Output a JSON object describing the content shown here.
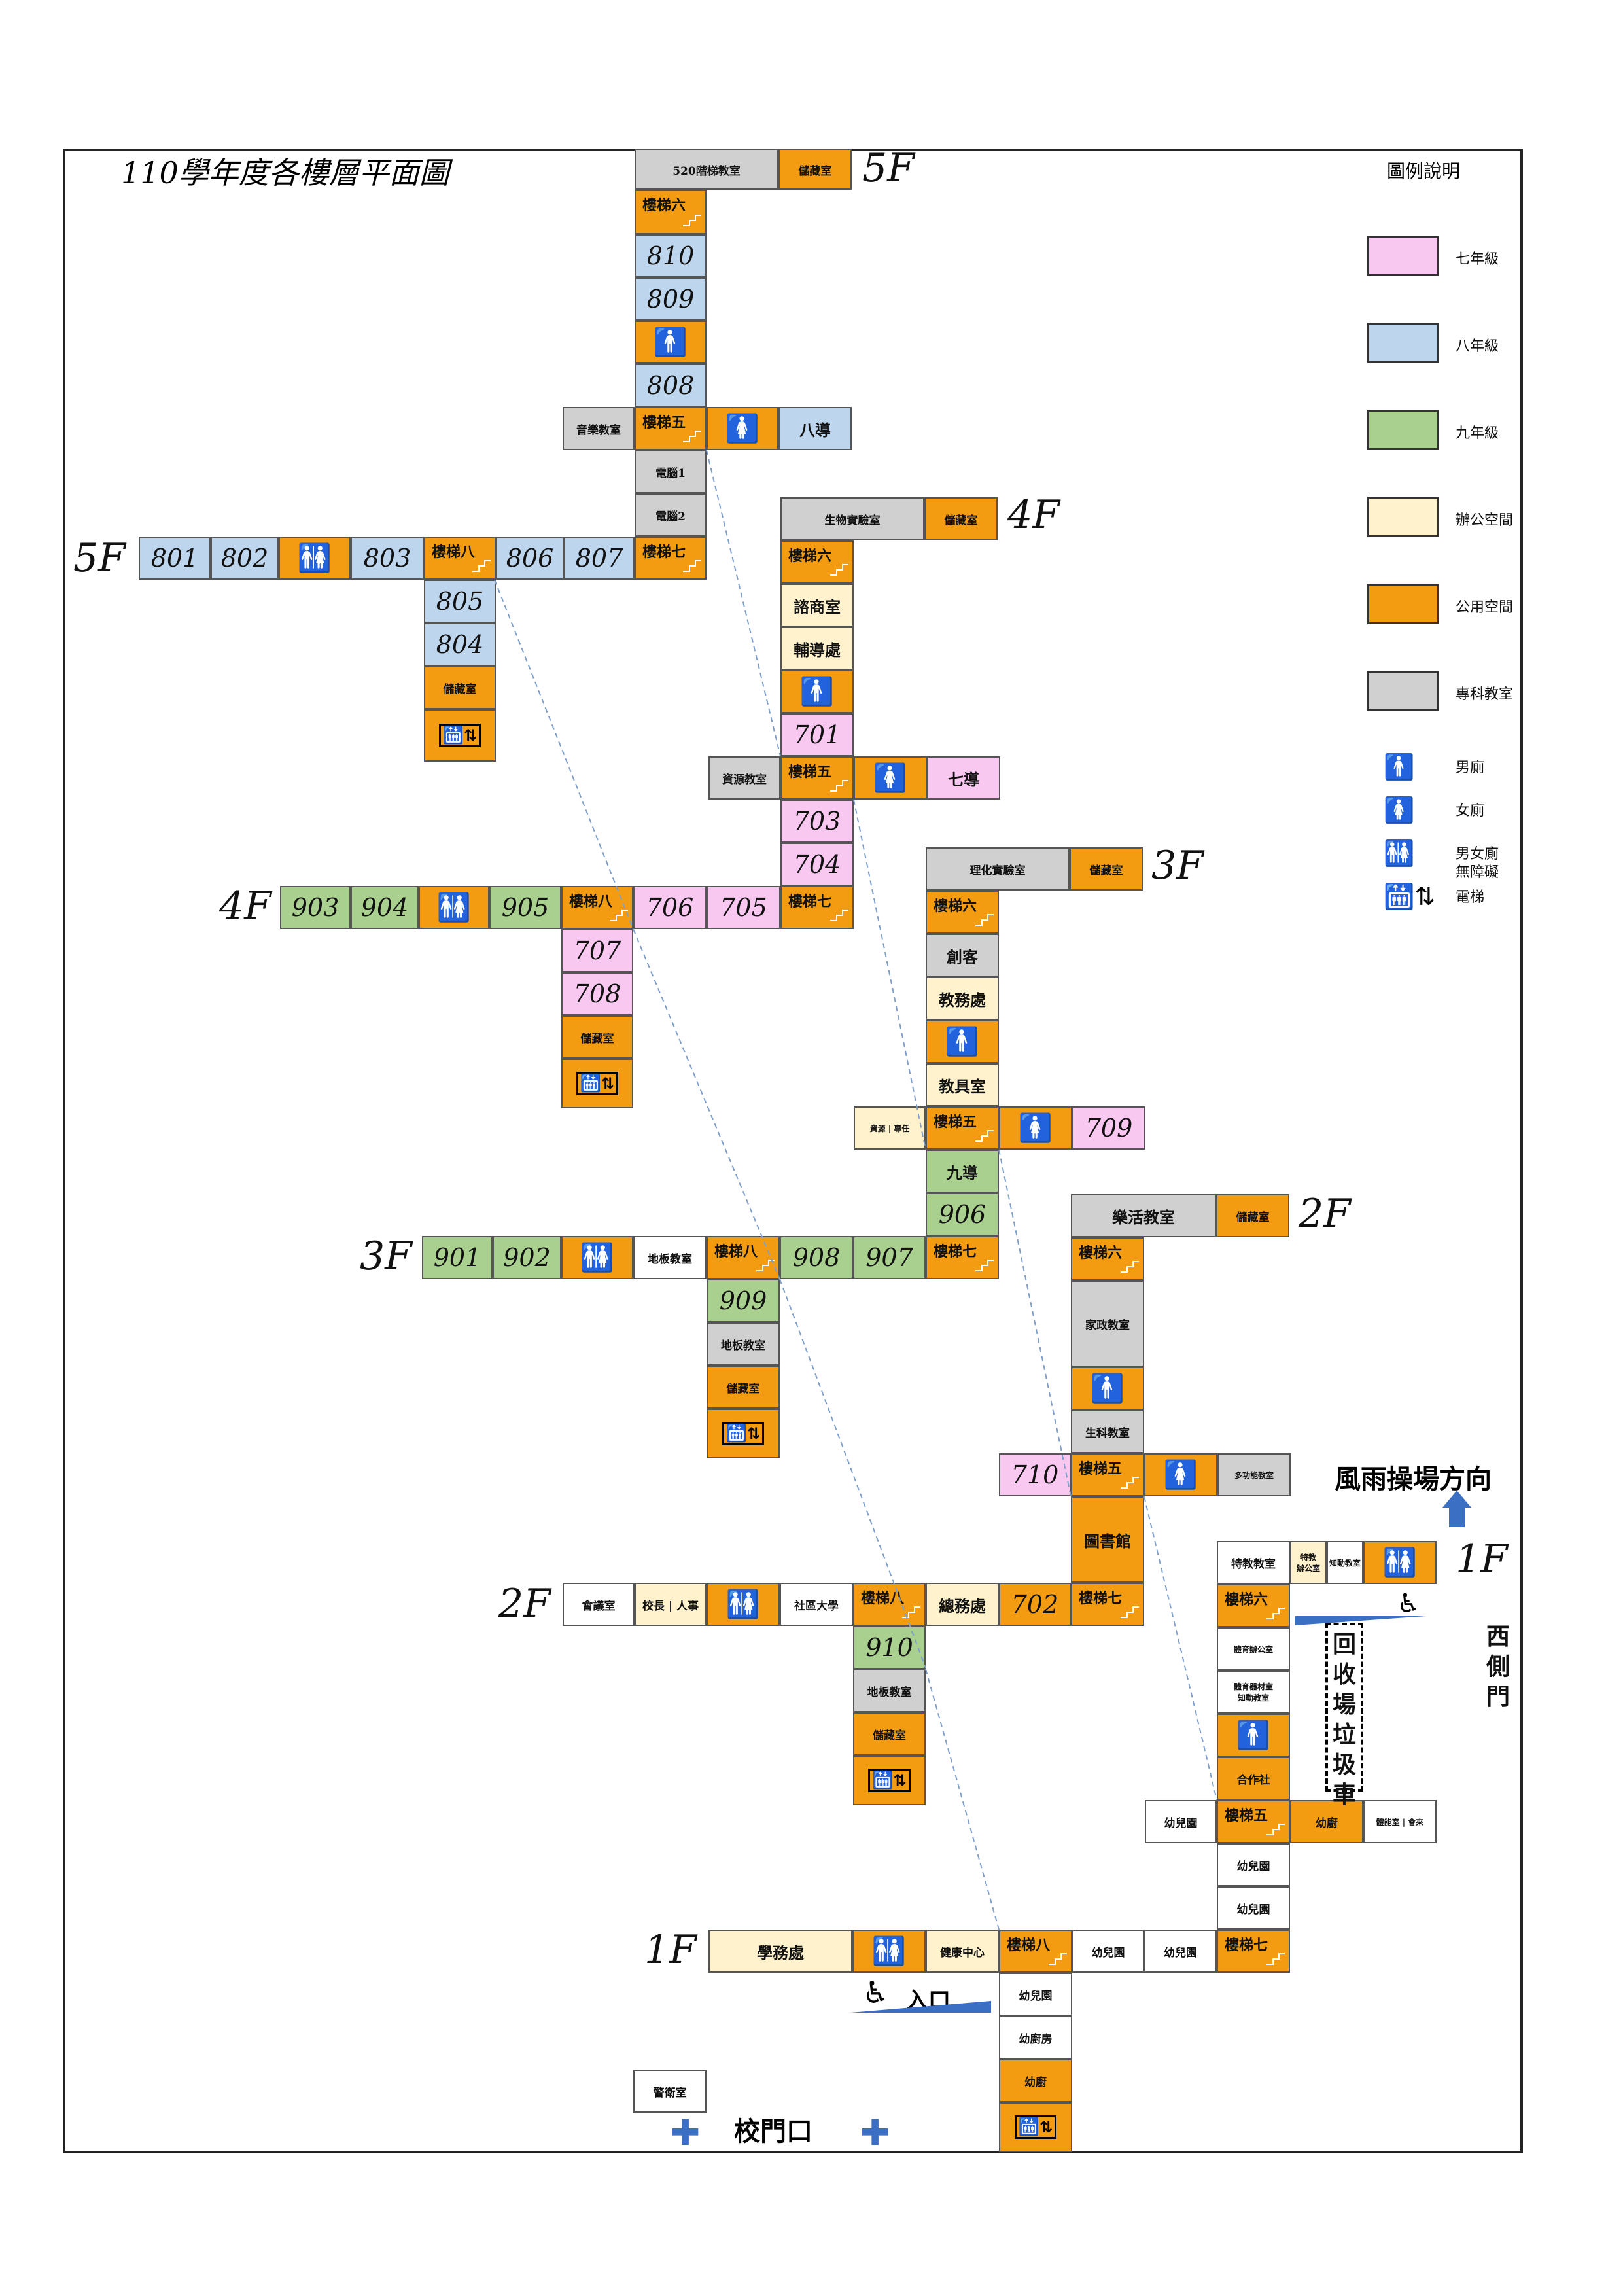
{
  "title": "110學年度各樓層平面圖",
  "colors": {
    "grade7": "#f8c8f0",
    "grade8": "#bdd6ee",
    "grade9": "#a9d08e",
    "office": "#fff2cc",
    "public": "#f39c12",
    "special": "#d0d0d0",
    "white": "#ffffff"
  },
  "floor_labels": {
    "f5": "5F",
    "f4": "4F",
    "f3": "3F",
    "f2": "2F",
    "f1": "1F"
  },
  "legend": {
    "title": "圖例說明",
    "items": [
      {
        "label": "七年級",
        "color": "#f8c8f0"
      },
      {
        "label": "八年級",
        "color": "#bdd6ee"
      },
      {
        "label": "九年級",
        "color": "#a9d08e"
      },
      {
        "label": "辦公空間",
        "color": "#fff2cc"
      },
      {
        "label": "公用空間",
        "color": "#f39c12"
      },
      {
        "label": "專科教室",
        "color": "#d0d0d0"
      }
    ],
    "icons": [
      {
        "icon": "male-icon",
        "label": "男廁"
      },
      {
        "icon": "female-icon",
        "label": "女廁"
      },
      {
        "icon": "accessible-restroom-icon",
        "label": "男女廁\n無障礙"
      },
      {
        "icon": "elevator-icon",
        "label": "電梯"
      }
    ]
  },
  "labels": {
    "rain_direction": "風雨操場方向",
    "west_gate": "西側門",
    "recycle": "回收場垃圾車",
    "entrance": "入口",
    "school_gate": "校門口",
    "stairs": {
      "s5": "樓梯五",
      "s6": "樓梯六",
      "s7": "樓梯七",
      "s8": "樓梯八"
    },
    "storage": "儲藏室"
  },
  "rooms": {
    "r520": "520階梯教室",
    "music": "音樂教室",
    "elev1": "電腦1",
    "elev2": "電腦2",
    "guide8": "八導",
    "biolab": "生物實驗室",
    "counsel": "諮商室",
    "guidance": "輔導處",
    "resource": "資源教室",
    "guide7": "七導",
    "physlab": "理化實驗室",
    "maker": "創客",
    "academic": "教務處",
    "equip": "教具室",
    "resource_spec": "資源 | 專任",
    "guide9": "九導",
    "floorclass": "地板教室",
    "musicroom": "樂活教室",
    "homeec": "家政教室",
    "bioclass": "生科教室",
    "multi": "多功能教室",
    "library": "圖書館",
    "meeting": "會議室",
    "principal": "校長 | 人事",
    "community": "社區大學",
    "general": "總務處",
    "special_ed": "特教教室",
    "special_office": "特教\n辦公室",
    "art_room": "知動教室",
    "pe_office": "體育辦公室",
    "pe_equip": "體育器材室\n知動教室",
    "coop": "合作社",
    "kinder": "幼兒園",
    "kitchen_k": "幼廚",
    "kitchen_k2": "幼廚房",
    "lab_room": "體能室 | 會來",
    "studies": "學務處",
    "health": "健康中心",
    "guard": "警衛室"
  },
  "numbers": {
    "n801": "801",
    "n802": "802",
    "n803": "803",
    "n804": "804",
    "n805": "805",
    "n806": "806",
    "n807": "807",
    "n808": "808",
    "n809": "809",
    "n810": "810",
    "n701": "701",
    "n702": "702",
    "n703": "703",
    "n704": "704",
    "n705": "705",
    "n706": "706",
    "n707": "707",
    "n708": "708",
    "n709": "709",
    "n710": "710",
    "n901": "901",
    "n902": "902",
    "n903": "903",
    "n904": "904",
    "n905": "905",
    "n906": "906",
    "n907": "907",
    "n908": "908",
    "n909": "909",
    "n910": "910"
  }
}
